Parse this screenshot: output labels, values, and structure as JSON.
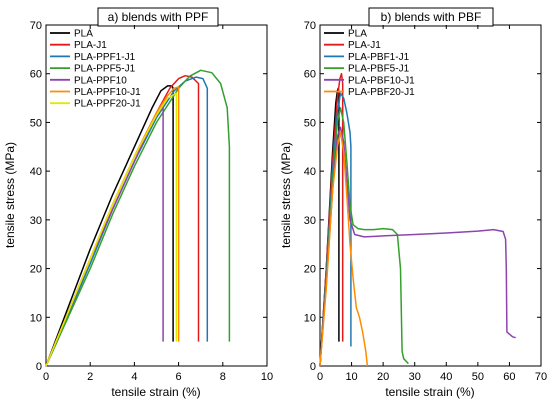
{
  "chart_data": [
    {
      "type": "line",
      "title": "a) blends with PPF",
      "xlabel": "tensile strain (%)",
      "ylabel": "tensile stress (MPa)",
      "xlim": [
        0,
        10
      ],
      "ylim": [
        0,
        70
      ],
      "xticks": [
        0,
        2,
        4,
        6,
        8,
        10
      ],
      "yticks": [
        0,
        10,
        20,
        30,
        40,
        50,
        60,
        70
      ],
      "legend": "top-left",
      "series": [
        {
          "name": "PLA",
          "color": "#000000",
          "x": [
            0,
            0.5,
            1,
            2,
            3,
            4,
            4.8,
            5.2,
            5.5,
            5.7,
            5.75,
            5.75
          ],
          "y": [
            0,
            6,
            12,
            24,
            35,
            45,
            53,
            56.5,
            57.5,
            57.5,
            57,
            5
          ]
        },
        {
          "name": "PLA-J1",
          "color": "#e31a1c",
          "x": [
            0,
            0.5,
            1,
            2,
            3,
            4,
            5,
            5.6,
            6,
            6.3,
            6.6,
            6.9,
            6.9
          ],
          "y": [
            0,
            5.5,
            11,
            22,
            33,
            43,
            52,
            57,
            59,
            59.6,
            59.3,
            58,
            5
          ]
        },
        {
          "name": "PLA-PPF1-J1",
          "color": "#1f78b4",
          "x": [
            0,
            0.5,
            1,
            2,
            3,
            4,
            5,
            5.8,
            6.3,
            6.8,
            7.1,
            7.3,
            7.3
          ],
          "y": [
            0,
            5,
            10.5,
            21,
            32,
            42,
            51,
            56.5,
            58.5,
            59.3,
            59,
            57,
            5
          ]
        },
        {
          "name": "PLA-PPF5-J1",
          "color": "#33a02c",
          "x": [
            0,
            0.5,
            1,
            2,
            3,
            4,
            5,
            6,
            6.5,
            7,
            7.5,
            7.9,
            8.2,
            8.3,
            8.3
          ],
          "y": [
            0,
            5,
            10,
            20,
            31,
            41,
            50,
            57,
            59.5,
            60.7,
            60.2,
            58,
            53,
            45,
            5
          ]
        },
        {
          "name": "PLA-PPF10",
          "color": "#8e44ad",
          "x": [
            0,
            0.5,
            1,
            2,
            3,
            4,
            4.8,
            5.2,
            5.3,
            5.3
          ],
          "y": [
            0,
            5.5,
            11,
            22,
            32,
            42,
            50,
            53,
            53.5,
            5
          ]
        },
        {
          "name": "PLA-PPF10-J1",
          "color": "#ff8c00",
          "x": [
            0,
            0.5,
            1,
            2,
            3,
            4,
            5,
            5.5,
            5.8,
            6.0,
            6.0
          ],
          "y": [
            0,
            5.5,
            11,
            22,
            33,
            43,
            52,
            55.5,
            57,
            57.3,
            5
          ]
        },
        {
          "name": "PLA-PPF20-J1",
          "color": "#e6e600",
          "x": [
            0,
            0.5,
            1,
            2,
            3,
            4,
            5,
            5.5,
            5.9,
            5.9
          ],
          "y": [
            0,
            5.5,
            11,
            22,
            33,
            43,
            51.5,
            55,
            56,
            5
          ]
        }
      ]
    },
    {
      "type": "line",
      "title": "b) blends with PBF",
      "xlabel": "tensile strain (%)",
      "ylabel": "tensile stress (MPa)",
      "xlim": [
        0,
        70
      ],
      "ylim": [
        0,
        70
      ],
      "xticks": [
        0,
        10,
        20,
        30,
        40,
        50,
        60,
        70
      ],
      "yticks": [
        0,
        10,
        20,
        30,
        40,
        50,
        60,
        70
      ],
      "legend": "top-left",
      "series": [
        {
          "name": "PLA",
          "color": "#000000",
          "x": [
            0,
            2,
            4,
            5,
            5.5,
            5.8,
            6.0,
            6.0
          ],
          "y": [
            0,
            20,
            44,
            54,
            56.5,
            57,
            56,
            5
          ]
        },
        {
          "name": "PLA-J1",
          "color": "#e31a1c",
          "x": [
            0,
            2,
            4,
            5.5,
            6.3,
            6.8,
            7.2,
            7.2
          ],
          "y": [
            0,
            20,
            42,
            55,
            59,
            60,
            58,
            5
          ]
        },
        {
          "name": "PLA-PBF1-J1",
          "color": "#1f78b4",
          "x": [
            0,
            2,
            4,
            5.5,
            6.5,
            7.5,
            8.5,
            9.5,
            9.8,
            9.8
          ],
          "y": [
            0,
            19,
            40,
            52,
            56,
            55,
            52,
            48,
            45,
            4
          ]
        },
        {
          "name": "PLA-PBF5-J1",
          "color": "#33a02c",
          "x": [
            0,
            2,
            4,
            5.5,
            6.5,
            7.5,
            8.5,
            9.5,
            10.5,
            12,
            14,
            17,
            20,
            23,
            24.5,
            25.5,
            26,
            26.5,
            28
          ],
          "y": [
            0,
            18,
            38,
            50,
            53,
            50,
            42,
            33,
            29,
            28.2,
            28,
            28,
            28.2,
            28,
            27,
            20,
            3,
            1.5,
            0.5
          ]
        },
        {
          "name": "PLA-PBF10-J1",
          "color": "#8e44ad",
          "x": [
            0,
            2,
            4,
            5.5,
            6.5,
            7.5,
            8.5,
            9.5,
            11,
            14,
            20,
            30,
            40,
            50,
            55,
            58,
            58.8,
            59,
            59.2,
            61,
            62
          ],
          "y": [
            0,
            17,
            36,
            47,
            49,
            46,
            38,
            30,
            27,
            26.5,
            26.7,
            27,
            27.3,
            27.7,
            28,
            27.6,
            26,
            20,
            7,
            6,
            5.8
          ]
        },
        {
          "name": "PLA-PBF20-J1",
          "color": "#ff8c00",
          "x": [
            0,
            2,
            4,
            5.5,
            6.5,
            7.5,
            8.5,
            9.5,
            10.5,
            11.5,
            12.5,
            13.5,
            14.5,
            15
          ],
          "y": [
            0,
            16,
            36,
            45,
            48,
            44,
            35,
            25,
            18,
            12,
            10,
            7,
            3,
            0
          ]
        }
      ]
    }
  ]
}
